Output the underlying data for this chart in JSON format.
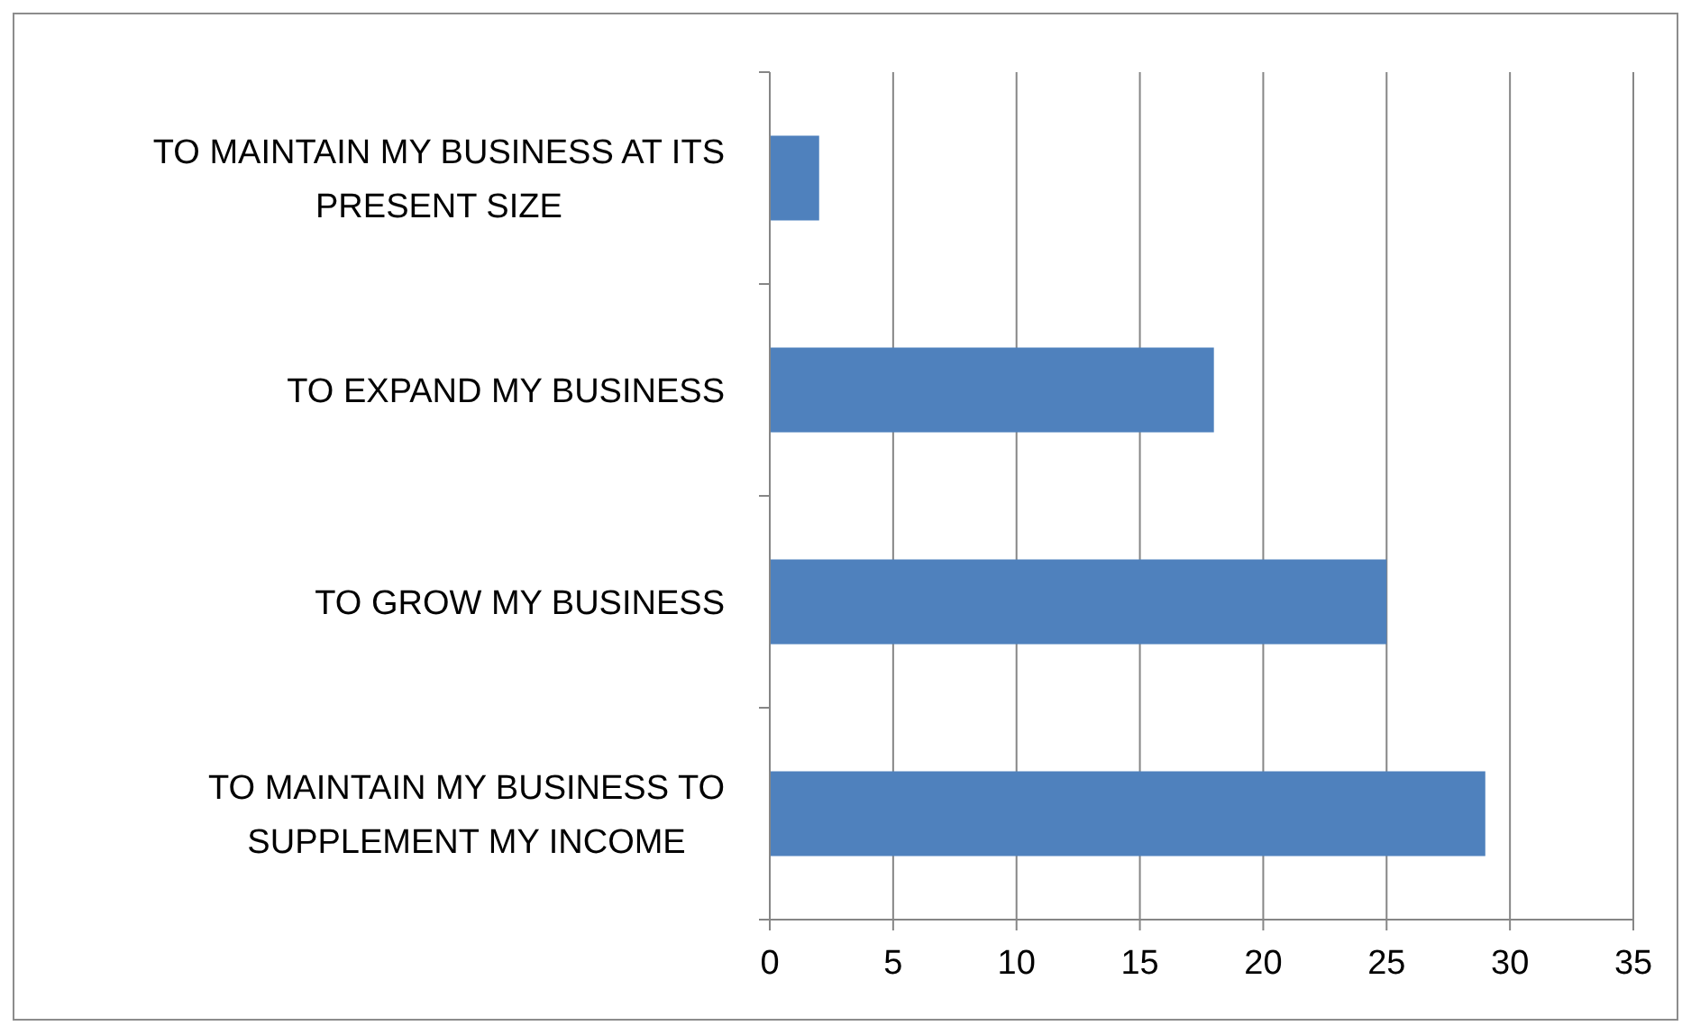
{
  "chart_data": {
    "type": "bar",
    "orientation": "horizontal",
    "categories": [
      "TO MAINTAIN MY BUSINESS AT ITS PRESENT SIZE",
      "TO EXPAND MY BUSINESS",
      "TO GROW MY BUSINESS",
      "TO MAINTAIN MY BUSINESS TO SUPPLEMENT MY INCOME"
    ],
    "values": [
      2,
      18,
      25,
      29
    ],
    "color": "#4f81bd",
    "xlim": [
      0,
      35
    ],
    "xticks": [
      0,
      5,
      10,
      15,
      20,
      25,
      30,
      35
    ],
    "grid": "x"
  }
}
